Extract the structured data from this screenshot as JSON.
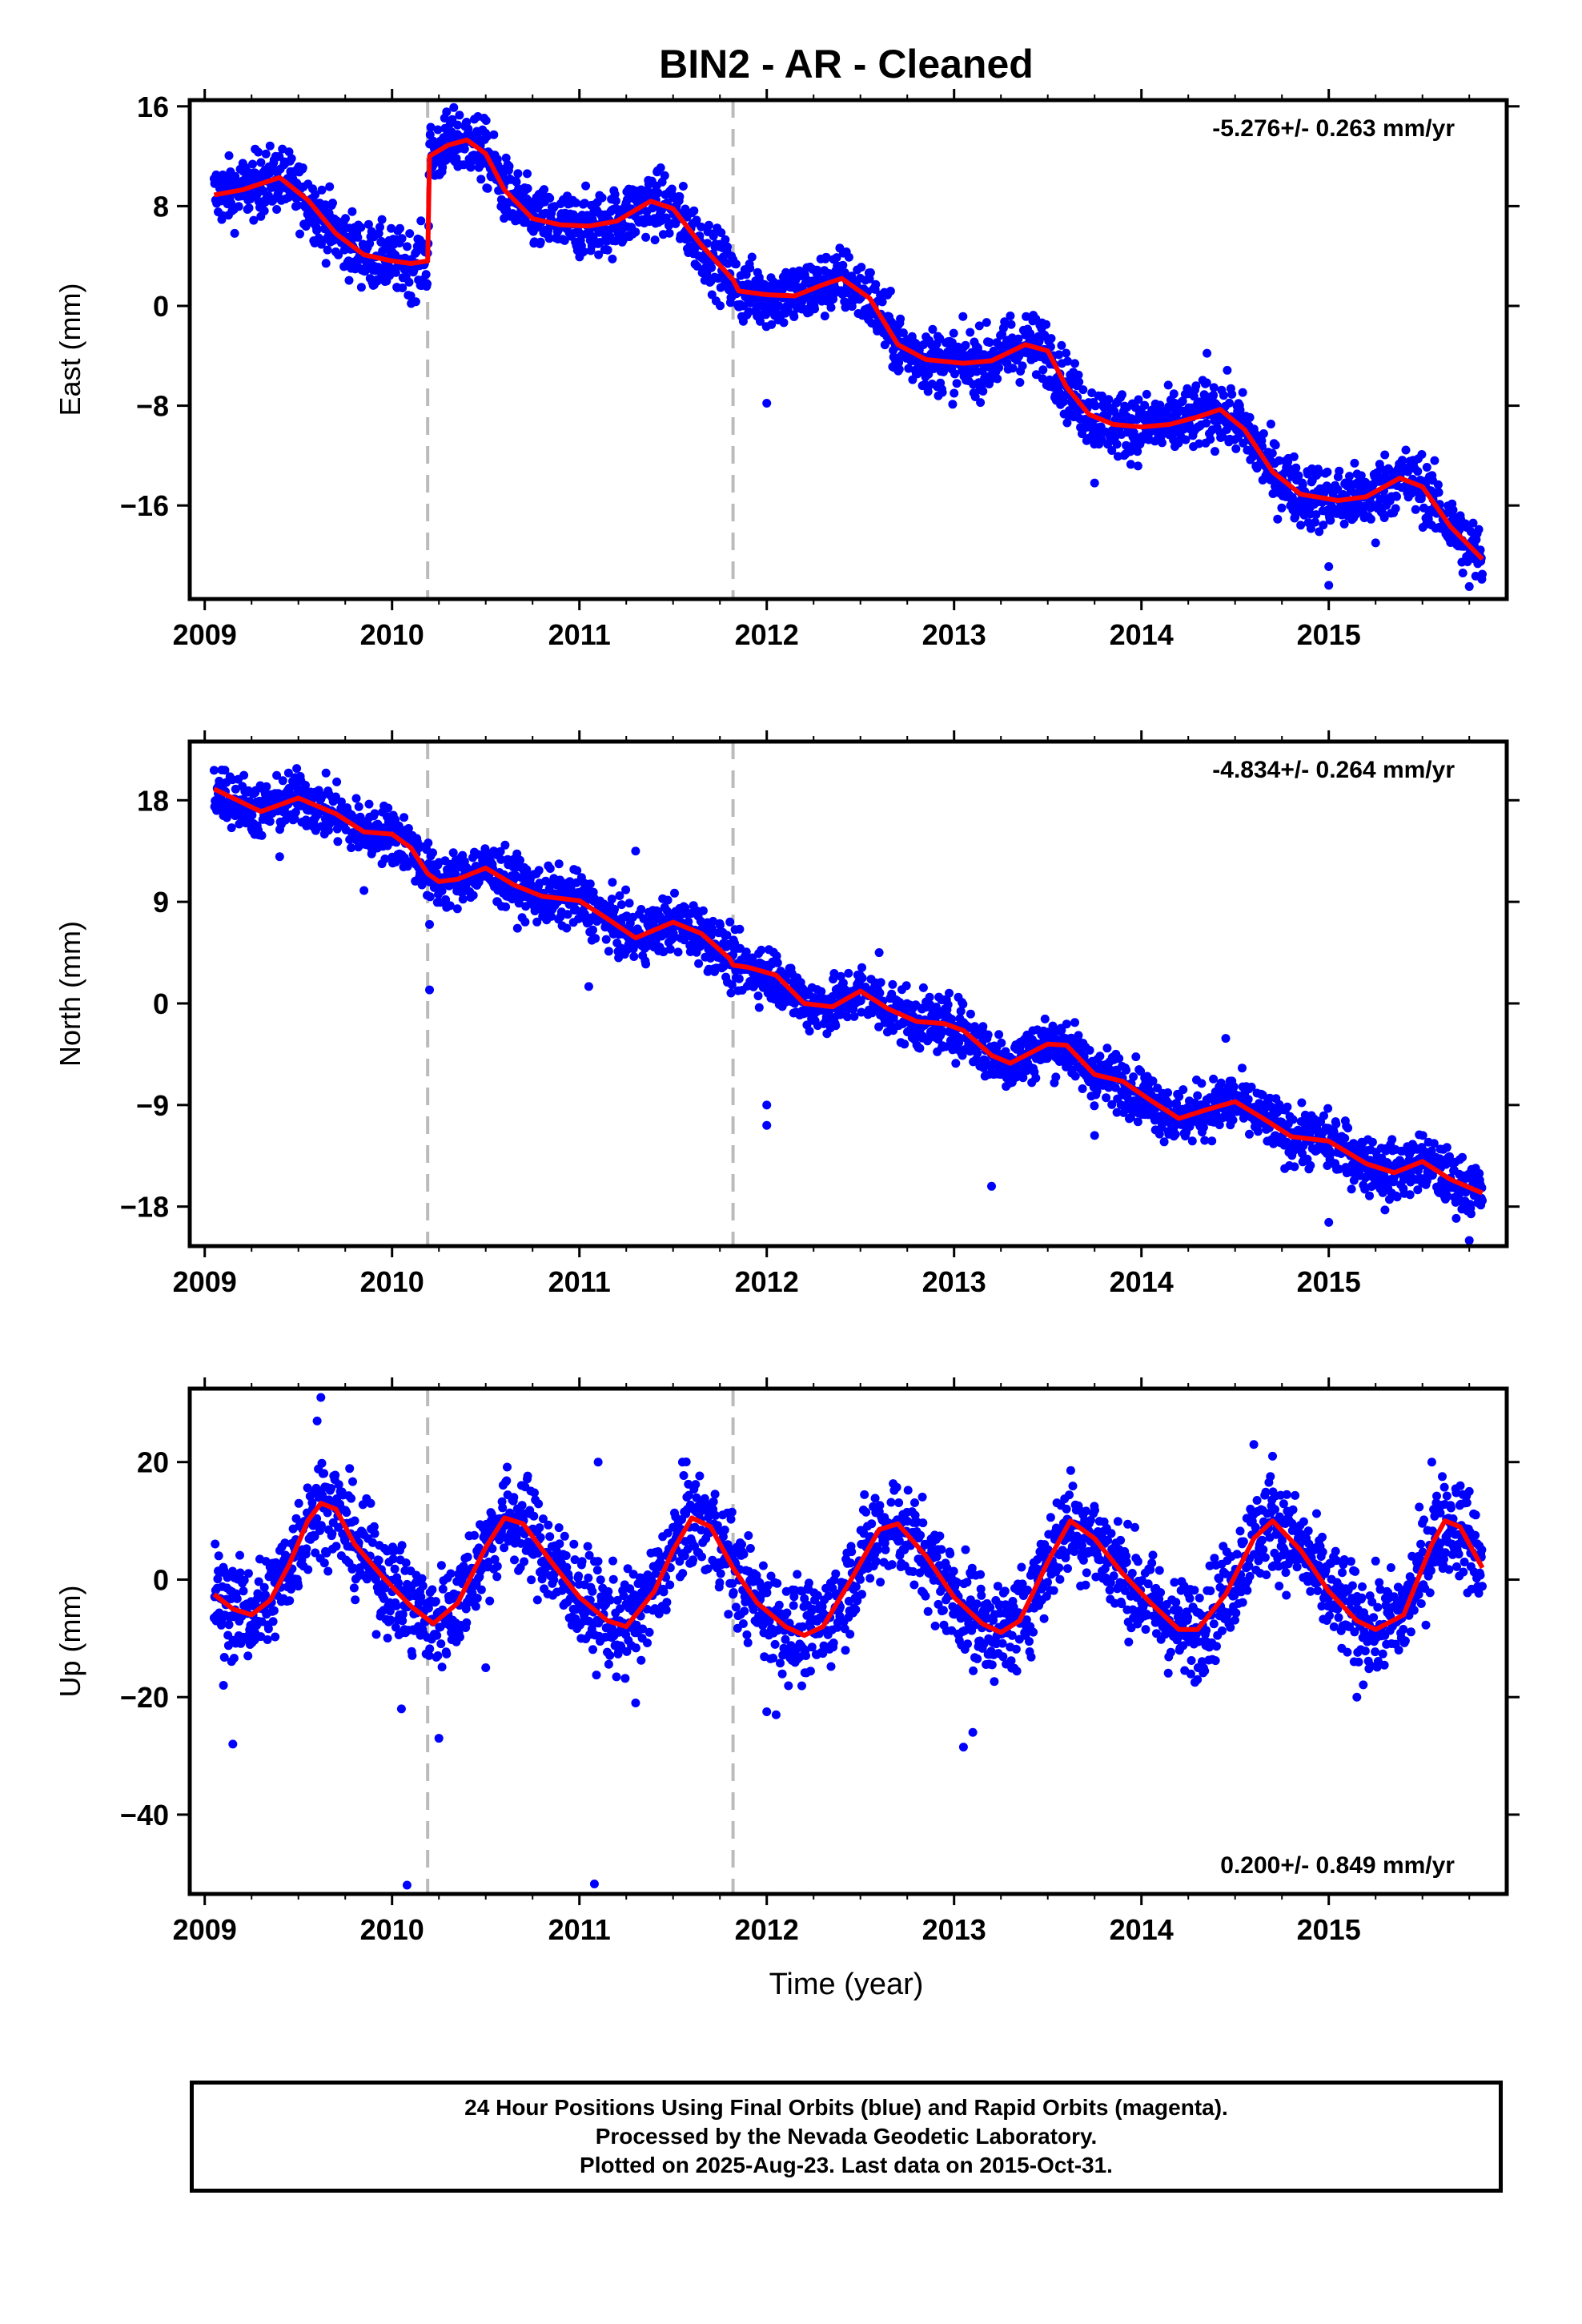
{
  "title": "BIN2  - AR - Cleaned",
  "xlabel": "Time (year)",
  "footer": {
    "line1": "24 Hour Positions Using Final Orbits (blue) and Rapid Orbits (magenta).",
    "line2": "Processed by the Nevada Geodetic Laboratory.",
    "line3": "Plotted on 2025-Aug-23. Last data on 2015-Oct-31."
  },
  "colors": {
    "data": "#0000ff",
    "model": "#ff0000",
    "break_lines": "#bbbbbb",
    "axes": "#000000"
  },
  "chart_data": [
    {
      "type": "scatter",
      "panel": "east",
      "ylabel": "East (mm)",
      "rate_label": "-5.276+/- 0.263 mm/yr",
      "rate_position": "top-right",
      "xlim": [
        2008.92,
        2015.95
      ],
      "ylim": [
        -23.5,
        16.5
      ],
      "xticks": [
        2009,
        2010,
        2011,
        2012,
        2013,
        2014,
        2015
      ],
      "yticks": [
        16,
        8,
        0,
        -8,
        -16
      ],
      "break_lines": [
        2010.19,
        2011.82
      ],
      "model": {
        "x": [
          2009.05,
          2009.2,
          2009.4,
          2009.55,
          2009.7,
          2009.85,
          2010.0,
          2010.1,
          2010.19,
          2010.2,
          2010.3,
          2010.4,
          2010.5,
          2010.6,
          2010.75,
          2010.9,
          2011.05,
          2011.2,
          2011.38,
          2011.5,
          2011.65,
          2011.82,
          2011.85,
          2012.0,
          2012.15,
          2012.3,
          2012.4,
          2012.55,
          2012.7,
          2012.85,
          2013.05,
          2013.2,
          2013.38,
          2013.5,
          2013.6,
          2013.72,
          2013.85,
          2014.0,
          2014.15,
          2014.3,
          2014.42,
          2014.55,
          2014.7,
          2014.85,
          2015.05,
          2015.2,
          2015.38,
          2015.5,
          2015.65,
          2015.82
        ],
        "y": [
          8.9,
          9.3,
          10.3,
          8.5,
          5.8,
          4.1,
          3.6,
          3.4,
          3.6,
          12.0,
          12.9,
          13.3,
          12.2,
          9.3,
          7.0,
          6.5,
          6.4,
          6.8,
          8.4,
          7.8,
          4.9,
          2.1,
          1.2,
          0.9,
          0.8,
          1.7,
          2.2,
          0.6,
          -3.1,
          -4.3,
          -4.6,
          -4.4,
          -3.1,
          -3.6,
          -6.5,
          -8.7,
          -9.5,
          -9.7,
          -9.5,
          -8.9,
          -8.3,
          -9.9,
          -13.3,
          -15.1,
          -15.6,
          -15.3,
          -13.8,
          -14.5,
          -17.7,
          -20.3
        ]
      },
      "points": {
        "x": [
          2009.3,
          2010.1,
          2010.35,
          2011.6,
          2012.0,
          2013.0,
          2013.3,
          2013.75,
          2014.35,
          2015.0,
          2015.0,
          2015.25,
          2015.75
        ],
        "y": [
          11.5,
          0.8,
          14.5,
          6.5,
          -7.8,
          -7.0,
          -0.8,
          -14.2,
          -3.8,
          -20.9,
          -22.4,
          -19.0,
          -22.5
        ]
      }
    },
    {
      "type": "scatter",
      "panel": "north",
      "ylabel": "North (mm)",
      "rate_label": "-4.834+/- 0.264 mm/yr",
      "rate_position": "top-right",
      "xlim": [
        2008.92,
        2015.95
      ],
      "ylim": [
        -21.5,
        23.2
      ],
      "xticks": [
        2009,
        2010,
        2011,
        2012,
        2013,
        2014,
        2015
      ],
      "yticks": [
        18,
        9,
        0,
        -9,
        -18
      ],
      "break_lines": [
        2010.19,
        2011.82
      ],
      "model": {
        "x": [
          2009.05,
          2009.3,
          2009.5,
          2009.7,
          2009.85,
          2010.0,
          2010.1,
          2010.19,
          2010.25,
          2010.35,
          2010.5,
          2010.65,
          2010.8,
          2011.0,
          2011.15,
          2011.3,
          2011.5,
          2011.65,
          2011.8,
          2011.82,
          2011.9,
          2012.05,
          2012.2,
          2012.35,
          2012.5,
          2012.65,
          2012.8,
          2012.95,
          2013.05,
          2013.2,
          2013.3,
          2013.5,
          2013.6,
          2013.75,
          2013.9,
          2014.05,
          2014.2,
          2014.35,
          2014.5,
          2014.65,
          2014.8,
          2015.0,
          2015.2,
          2015.35,
          2015.5,
          2015.65,
          2015.82
        ],
        "y": [
          19.0,
          17.0,
          18.2,
          16.8,
          15.2,
          15.0,
          13.8,
          11.5,
          10.8,
          11.0,
          12.0,
          10.5,
          9.5,
          9.1,
          7.5,
          5.8,
          7.2,
          6.2,
          4.0,
          3.4,
          3.2,
          2.5,
          0.0,
          -0.3,
          1.1,
          -0.5,
          -1.6,
          -1.8,
          -2.4,
          -4.6,
          -5.3,
          -3.6,
          -3.7,
          -6.3,
          -6.9,
          -8.6,
          -10.2,
          -9.4,
          -8.7,
          -10.2,
          -11.8,
          -12.2,
          -14.2,
          -15.0,
          -14.0,
          -15.6,
          -16.8
        ]
      },
      "points": {
        "x": [
          2009.4,
          2009.85,
          2010.2,
          2010.2,
          2011.05,
          2011.3,
          2011.65,
          2012.0,
          2012.0,
          2012.6,
          2013.2,
          2013.75,
          2014.45,
          2015.0,
          2015.3,
          2015.75
        ],
        "y": [
          13.0,
          10.0,
          7.0,
          1.2,
          1.5,
          13.5,
          5.5,
          -9.0,
          -10.8,
          4.5,
          -16.2,
          -11.7,
          -3.1,
          -19.4,
          -18.3,
          -21.0
        ]
      }
    },
    {
      "type": "scatter",
      "panel": "up",
      "ylabel": "Up (mm)",
      "rate_label": "0.200+/- 0.849 mm/yr",
      "rate_position": "bottom-right",
      "xlim": [
        2008.92,
        2015.95
      ],
      "ylim": [
        -53.5,
        32.5
      ],
      "xticks": [
        2009,
        2010,
        2011,
        2012,
        2013,
        2014,
        2015
      ],
      "yticks": [
        20,
        0,
        -20,
        -40
      ],
      "break_lines": [
        2010.19,
        2011.82
      ],
      "model": {
        "x": [
          2009.05,
          2009.15,
          2009.25,
          2009.35,
          2009.45,
          2009.55,
          2009.62,
          2009.7,
          2009.8,
          2009.95,
          2010.1,
          2010.22,
          2010.35,
          2010.5,
          2010.6,
          2010.7,
          2010.85,
          2011.0,
          2011.15,
          2011.25,
          2011.4,
          2011.5,
          2011.6,
          2011.7,
          2011.82,
          2011.95,
          2012.1,
          2012.2,
          2012.3,
          2012.45,
          2012.6,
          2012.7,
          2012.85,
          2013.0,
          2013.15,
          2013.25,
          2013.35,
          2013.5,
          2013.62,
          2013.75,
          2013.9,
          2014.05,
          2014.2,
          2014.3,
          2014.45,
          2014.6,
          2014.7,
          2014.85,
          2015.0,
          2015.15,
          2015.25,
          2015.4,
          2015.55,
          2015.62,
          2015.7,
          2015.82
        ],
        "y": [
          -2.5,
          -5.0,
          -6.0,
          -3.5,
          2.5,
          10.0,
          13.0,
          12.0,
          6.0,
          0.5,
          -4.5,
          -7.5,
          -4.0,
          5.5,
          10.5,
          9.5,
          3.0,
          -3.0,
          -7.0,
          -8.0,
          -2.0,
          5.0,
          10.5,
          9.0,
          2.0,
          -4.0,
          -8.0,
          -9.5,
          -8.0,
          0.0,
          8.5,
          9.5,
          4.0,
          -3.0,
          -7.5,
          -9.0,
          -7.0,
          3.0,
          10.0,
          7.0,
          1.0,
          -4.0,
          -8.5,
          -8.5,
          -2.5,
          7.0,
          10.0,
          5.0,
          -2.0,
          -7.0,
          -8.5,
          -6.0,
          6.0,
          10.0,
          9.0,
          2.0
        ]
      },
      "points": {
        "x": [
          2009.1,
          2009.15,
          2009.6,
          2009.62,
          2010.05,
          2010.25,
          2010.5,
          2011.1,
          2011.3,
          2011.55,
          2012.0,
          2012.05,
          2013.05,
          2013.1,
          2013.6,
          2014.6,
          2014.7,
          2015.15,
          2015.55,
          2015.75
        ],
        "y": [
          -18.0,
          -28.0,
          27.0,
          31.0,
          -22.0,
          -27.0,
          -15.0,
          20.0,
          -21.0,
          20.0,
          -22.5,
          -23.0,
          -28.5,
          -26.0,
          12.0,
          23.0,
          21.0,
          -20.0,
          20.0,
          15.0
        ]
      },
      "outliers": {
        "x": [
          2010.08,
          2011.08
        ],
        "y": [
          -52.0,
          -51.8
        ]
      }
    }
  ]
}
